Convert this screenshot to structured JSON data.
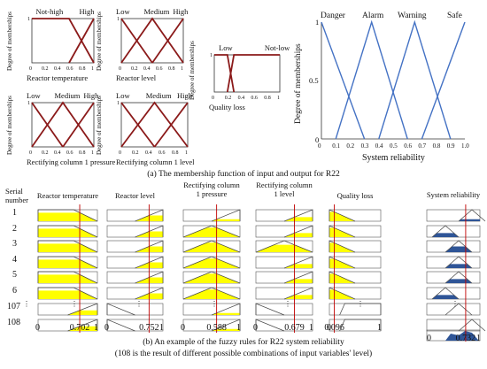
{
  "top": {
    "charts": [
      {
        "id": "reactor-temperature",
        "labels": [
          "Not-high",
          "High"
        ],
        "ylabel": "Degree of memberships",
        "xlabel": "Reactor temperature",
        "ticks": [
          "0",
          "0.2",
          "0.4",
          "0.6",
          "0.8",
          "1"
        ],
        "xs": [
          0,
          0.2,
          0.4,
          0.6,
          0.8,
          1
        ],
        "sets": [
          [
            [
              0,
              1
            ],
            [
              0.6,
              1
            ],
            [
              1,
              0
            ]
          ],
          [
            [
              0.6,
              0
            ],
            [
              1,
              1
            ]
          ]
        ]
      },
      {
        "id": "reactor-level",
        "labels": [
          "Low",
          "Medium",
          "High"
        ],
        "ylabel": "Degree of memberships",
        "xlabel": "Reactor level",
        "ticks": [
          "0",
          "0.2",
          "0.4",
          "0.6",
          "0.8",
          "1"
        ],
        "xs": [
          0,
          0.2,
          0.4,
          0.6,
          0.8,
          1
        ],
        "sets": [
          [
            [
              0,
              1
            ],
            [
              0.5,
              0
            ]
          ],
          [
            [
              0,
              0
            ],
            [
              0.5,
              1
            ],
            [
              1,
              0
            ]
          ],
          [
            [
              0.5,
              0
            ],
            [
              1,
              1
            ]
          ]
        ]
      },
      {
        "id": "quality-loss",
        "labels": [
          "Low",
          "Not-low"
        ],
        "ylabel": "Degree of memberships",
        "xlabel": "Quality loss",
        "ticks": [
          "0",
          "0.2",
          "0.4",
          "0.6",
          "0.8",
          "1"
        ],
        "xs": [
          0,
          0.2,
          0.4,
          0.6,
          0.8,
          1
        ],
        "sets": [
          [
            [
              0,
              1
            ],
            [
              0.2,
              1
            ],
            [
              0.3,
              0
            ]
          ],
          [
            [
              0.2,
              0
            ],
            [
              0.3,
              1
            ],
            [
              1,
              1
            ]
          ]
        ]
      },
      {
        "id": "rectifying-column-1-pressure",
        "labels": [
          "Low",
          "Medium",
          "High"
        ],
        "ylabel": "Degree of memberships",
        "xlabel": "Rectifying column 1 pressure",
        "ticks": [
          "0",
          "0.2",
          "0.4",
          "0.6",
          "0.8",
          "1"
        ],
        "xs": [
          0,
          0.2,
          0.4,
          0.6,
          0.8,
          1
        ],
        "sets": [
          [
            [
              0,
              1
            ],
            [
              0.5,
              0
            ]
          ],
          [
            [
              0,
              0
            ],
            [
              0.5,
              1
            ],
            [
              1,
              0
            ]
          ],
          [
            [
              0.5,
              0
            ],
            [
              1,
              1
            ]
          ]
        ]
      },
      {
        "id": "rectifying-column-1-level",
        "labels": [
          "Low",
          "Medium",
          "High"
        ],
        "ylabel": "Degree of memberships",
        "xlabel": "Rectifying column 1 level",
        "ticks": [
          "0",
          "0.2",
          "0.4",
          "0.6",
          "0.8",
          "1"
        ],
        "xs": [
          0,
          0.2,
          0.4,
          0.6,
          0.8,
          1
        ],
        "sets": [
          [
            [
              0,
              1
            ],
            [
              0.5,
              0
            ]
          ],
          [
            [
              0,
              0
            ],
            [
              0.5,
              1
            ],
            [
              1,
              0
            ]
          ],
          [
            [
              0.5,
              0
            ],
            [
              1,
              1
            ]
          ]
        ]
      }
    ],
    "output": {
      "labels": [
        "Danger",
        "Alarm",
        "Warning",
        "Safe"
      ],
      "ylabel": "Degree of memberships",
      "xlabel": "System reliability",
      "yticks": [
        "1",
        "0.5",
        "0"
      ],
      "ticks": [
        "0",
        "0.1",
        "0.2",
        "0.3",
        "0.4",
        "0.5",
        "0.6",
        "0.7",
        "0.8",
        "0.9",
        "1.0"
      ],
      "sets": [
        [
          [
            0,
            1
          ],
          [
            0.3,
            0
          ]
        ],
        [
          [
            0.1,
            0
          ],
          [
            0.35,
            1
          ],
          [
            0.6,
            0
          ]
        ],
        [
          [
            0.4,
            0
          ],
          [
            0.65,
            1
          ],
          [
            0.9,
            0
          ]
        ],
        [
          [
            0.7,
            0
          ],
          [
            1,
            1
          ]
        ]
      ]
    },
    "caption": "(a) The membership function of input and output for R22"
  },
  "bottom": {
    "serial_header": [
      "Serial",
      "number"
    ],
    "columns": [
      {
        "header": [
          "Reactor temperature"
        ],
        "value_label": "0.702",
        "input": 0.702,
        "axis": [
          "0",
          "1"
        ]
      },
      {
        "header": [
          "Reactor level"
        ],
        "value_label": "0.752",
        "input": 0.752,
        "axis": [
          "0",
          "1"
        ]
      },
      {
        "header": [
          "Rectifying column",
          "1 pressure"
        ],
        "value_label": "0.588",
        "input": 0.588,
        "axis": [
          "0",
          "1"
        ]
      },
      {
        "header": [
          "Rectifying column",
          "1 level"
        ],
        "value_label": "0.679",
        "input": 0.679,
        "axis": [
          "0",
          "1"
        ]
      },
      {
        "header": [
          "Quality loss"
        ],
        "value_label": "0.096",
        "input": 0.096,
        "axis": [
          "0",
          "1"
        ]
      }
    ],
    "output_column": {
      "header": "System reliability",
      "value_label": "0.732",
      "output": 0.732,
      "axis": [
        "0",
        "1"
      ]
    },
    "rows": [
      {
        "serial": "1",
        "sets": [
          "not-high",
          "high",
          "high",
          "high",
          "low"
        ],
        "out": "safe"
      },
      {
        "serial": "2",
        "sets": [
          "not-high",
          "high",
          "medium",
          "high",
          "low"
        ],
        "out": "alarm"
      },
      {
        "serial": "3",
        "sets": [
          "not-high",
          "high",
          "medium",
          "medium",
          "low"
        ],
        "out": "warning"
      },
      {
        "serial": "4",
        "sets": [
          "not-high",
          "high",
          "medium",
          "high",
          "low"
        ],
        "out": "warning"
      },
      {
        "serial": "5",
        "sets": [
          "not-high",
          "high",
          "medium",
          "high",
          "low"
        ],
        "out": "warning"
      },
      {
        "serial": "6",
        "sets": [
          "not-high",
          "high",
          "medium",
          "high",
          "low"
        ],
        "out": "alarm"
      },
      {
        "serial": "107",
        "sets": [
          "high",
          "low",
          "high",
          "low",
          "not-low"
        ],
        "out": "warning"
      },
      {
        "serial": "108",
        "sets": [
          "high",
          "low",
          "high",
          "low",
          "not-low"
        ],
        "out": "safe"
      }
    ],
    "ellipsis": "⋮",
    "caption1": "(b) An example of the fuzzy rules for R22 system reliability",
    "caption2": "(108 is the result of different possible combinations of input variables' level)"
  },
  "colors": {
    "curve": "#8b1a1a",
    "output_line": "#4472c4",
    "fill_yellow": "#ffff00",
    "fill_blue": "#2f5597",
    "box": "#555555"
  }
}
